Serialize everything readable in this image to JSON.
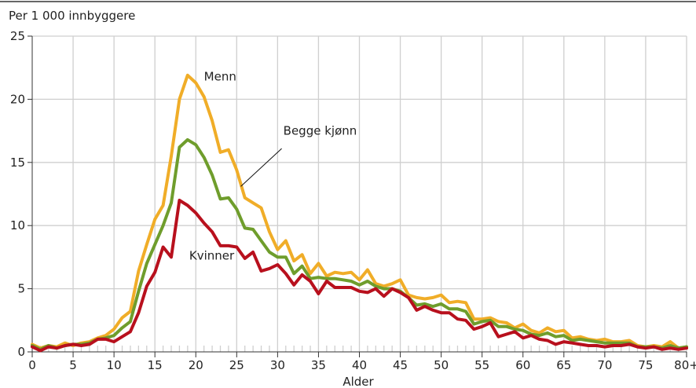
{
  "chart_data": {
    "type": "line",
    "ylabel": "Per 1 000 innbyggere",
    "xlabel": "Alder",
    "xlim": [
      0,
      80
    ],
    "ylim": [
      0,
      25
    ],
    "x_ticks": [
      0,
      5,
      10,
      15,
      20,
      25,
      30,
      35,
      40,
      45,
      50,
      55,
      60,
      65,
      70,
      75,
      80
    ],
    "x_tick_labels": [
      "0",
      "5",
      "10",
      "15",
      "20",
      "25",
      "30",
      "35",
      "40",
      "45",
      "50",
      "55",
      "60",
      "65",
      "70",
      "75",
      "80+"
    ],
    "y_ticks": [
      0,
      5,
      10,
      15,
      20,
      25
    ],
    "y_tick_labels": [
      "0",
      "5",
      "10",
      "15",
      "20",
      "25"
    ],
    "grid": true,
    "x": [
      0,
      1,
      2,
      3,
      4,
      5,
      6,
      7,
      8,
      9,
      10,
      11,
      12,
      13,
      14,
      15,
      16,
      17,
      18,
      19,
      20,
      21,
      22,
      23,
      24,
      25,
      26,
      27,
      28,
      29,
      30,
      31,
      32,
      33,
      34,
      35,
      36,
      37,
      38,
      39,
      40,
      41,
      42,
      43,
      44,
      45,
      46,
      47,
      48,
      49,
      50,
      51,
      52,
      53,
      54,
      55,
      56,
      57,
      58,
      59,
      60,
      61,
      62,
      63,
      64,
      65,
      66,
      67,
      68,
      69,
      70,
      71,
      72,
      73,
      74,
      75,
      76,
      77,
      78,
      79,
      80
    ],
    "series": [
      {
        "name": "Menn",
        "color": "#f0ad28",
        "label_at": [
          21,
          21.5
        ],
        "values": [
          0.6,
          0.3,
          0.5,
          0.4,
          0.7,
          0.5,
          0.7,
          0.8,
          1.1,
          1.3,
          1.8,
          2.7,
          3.2,
          6.4,
          8.5,
          10.5,
          11.6,
          15.5,
          20.0,
          21.9,
          21.3,
          20.2,
          18.3,
          15.8,
          16.0,
          14.4,
          12.2,
          11.8,
          11.4,
          9.5,
          8.1,
          8.8,
          7.2,
          7.7,
          6.2,
          7.0,
          6.0,
          6.3,
          6.2,
          6.3,
          5.7,
          6.5,
          5.4,
          5.2,
          5.4,
          5.7,
          4.5,
          4.3,
          4.2,
          4.3,
          4.5,
          3.9,
          4.0,
          3.9,
          2.6,
          2.6,
          2.7,
          2.4,
          2.3,
          1.9,
          2.2,
          1.7,
          1.5,
          1.9,
          1.6,
          1.7,
          1.1,
          1.2,
          1.0,
          0.9,
          1.0,
          0.8,
          0.8,
          0.9,
          0.5,
          0.4,
          0.5,
          0.4,
          0.8,
          0.3,
          0.4
        ]
      },
      {
        "name": "Begge kjønn",
        "color": "#6f9d2c",
        "label_at": [
          30.7,
          17.2
        ],
        "values": [
          0.5,
          0.2,
          0.5,
          0.3,
          0.5,
          0.6,
          0.6,
          0.7,
          1.0,
          1.1,
          1.3,
          1.9,
          2.4,
          4.8,
          7.0,
          8.5,
          10.0,
          11.8,
          16.2,
          16.8,
          16.4,
          15.4,
          14.0,
          12.1,
          12.2,
          11.3,
          9.8,
          9.7,
          8.8,
          7.9,
          7.5,
          7.5,
          6.2,
          6.8,
          5.8,
          5.9,
          5.8,
          5.8,
          5.7,
          5.6,
          5.3,
          5.6,
          5.2,
          5.0,
          5.0,
          4.8,
          4.3,
          3.7,
          3.8,
          3.6,
          3.8,
          3.4,
          3.4,
          3.2,
          2.2,
          2.4,
          2.5,
          2.0,
          2.0,
          1.8,
          1.7,
          1.4,
          1.3,
          1.5,
          1.2,
          1.3,
          0.9,
          1.0,
          0.9,
          0.8,
          0.7,
          0.7,
          0.7,
          0.7,
          0.4,
          0.4,
          0.4,
          0.3,
          0.5,
          0.3,
          0.4
        ]
      },
      {
        "name": "Kvinner",
        "color": "#b8101d",
        "label_at": [
          19.2,
          7.3
        ],
        "values": [
          0.4,
          0.1,
          0.4,
          0.3,
          0.5,
          0.6,
          0.5,
          0.6,
          1.0,
          1.0,
          0.8,
          1.2,
          1.6,
          3.1,
          5.2,
          6.3,
          8.3,
          7.5,
          12.0,
          11.6,
          11.0,
          10.2,
          9.5,
          8.4,
          8.4,
          8.3,
          7.4,
          7.9,
          6.4,
          6.6,
          6.9,
          6.2,
          5.3,
          6.1,
          5.6,
          4.6,
          5.6,
          5.1,
          5.1,
          5.1,
          4.8,
          4.7,
          5.0,
          4.4,
          5.0,
          4.7,
          4.3,
          3.3,
          3.6,
          3.3,
          3.1,
          3.1,
          2.6,
          2.5,
          1.8,
          2.0,
          2.3,
          1.2,
          1.4,
          1.6,
          1.1,
          1.3,
          1.0,
          0.9,
          0.6,
          0.8,
          0.7,
          0.6,
          0.5,
          0.5,
          0.4,
          0.5,
          0.5,
          0.6,
          0.4,
          0.3,
          0.4,
          0.2,
          0.3,
          0.2,
          0.3
        ]
      }
    ]
  }
}
